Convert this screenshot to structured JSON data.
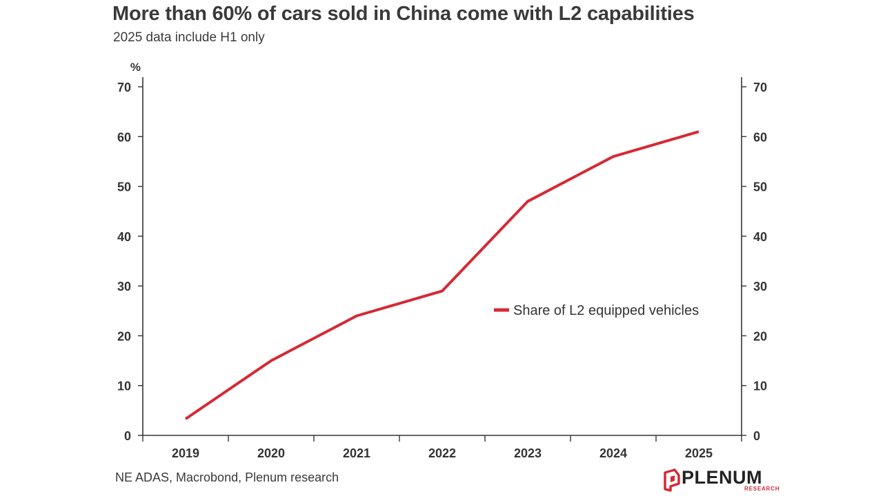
{
  "header": {
    "title": "More than 60% of cars sold in China come with L2 capabilities",
    "subtitle": "2025 data include H1 only"
  },
  "footer": {
    "source": "NE ADAS, Macrobond, Plenum research"
  },
  "logo": {
    "name": "PLENUM",
    "sub": "RESEARCH",
    "icon": "plenum-logo-icon",
    "color": "#d42a35"
  },
  "chart_data": {
    "type": "line",
    "title": "More than 60% of cars sold in China come with L2 capabilities",
    "subtitle": "2025 data include H1 only",
    "unit": "%",
    "categories": [
      "2019",
      "2020",
      "2021",
      "2022",
      "2023",
      "2024",
      "2025"
    ],
    "series": [
      {
        "name": "Share of L2 equipped vehicles",
        "values": [
          3.3,
          15,
          24,
          29,
          47,
          56,
          61
        ],
        "color": "#d42a35"
      }
    ],
    "ylim": [
      0,
      70
    ],
    "yticks": [
      "0",
      "10",
      "20",
      "30",
      "40",
      "50",
      "60",
      "70"
    ],
    "y_axis_sides": "both",
    "grid": false,
    "legend_position": "center-right"
  }
}
